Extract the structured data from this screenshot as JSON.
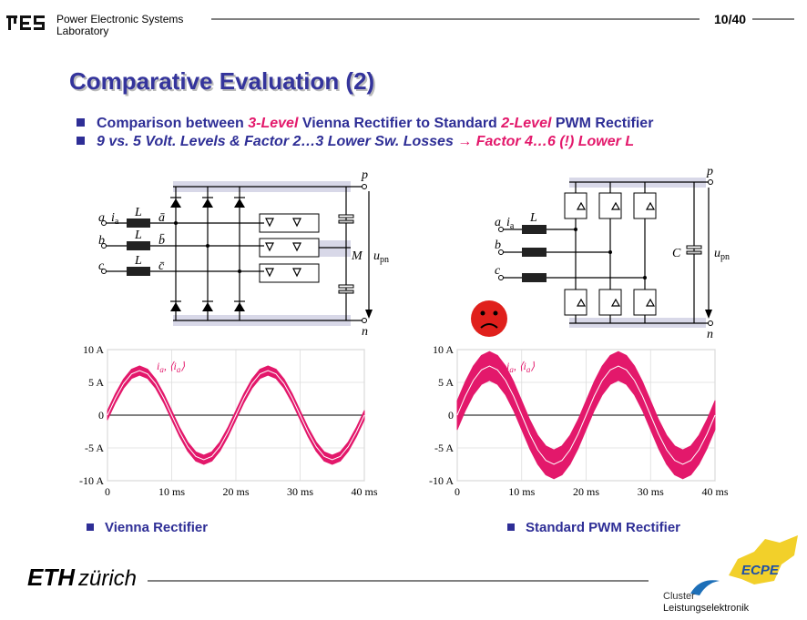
{
  "header": {
    "lab_line1": "Power Electronic Systems",
    "lab_line2": "Laboratory",
    "page": "10/40"
  },
  "title": "Comparative Evaluation (2)",
  "bullets": [
    {
      "a": "Comparison between ",
      "b": "3-Level",
      "c": " Vienna Rectifier to Standard ",
      "d": "2-Level",
      "e": " PWM Rectifier"
    },
    {
      "a": "9 vs. 5 Volt. Levels & Factor 2…3 Lower Sw. Losses ",
      "b": "→",
      "c": " Factor 4…6 (!) Lower L"
    }
  ],
  "diagrams": {
    "vienna": {
      "p": "p",
      "n": "n",
      "M": "M",
      "u": "u",
      "u_sub": "pn",
      "i": "i",
      "i_sub": "a",
      "phases": [
        "a",
        "b",
        "c"
      ],
      "L": [
        "L",
        "L",
        "L"
      ],
      "nodes": [
        "ā",
        "b̄",
        "c̄"
      ]
    },
    "standard": {
      "p": "p",
      "n": "n",
      "C": "C",
      "u": "u",
      "u_sub": "pn",
      "i": "i",
      "i_sub": "a",
      "phases": [
        "a",
        "b",
        "c"
      ],
      "L": "L"
    }
  },
  "chart_data": [
    {
      "type": "band",
      "caption": "Vienna Rectifier",
      "color": "#e3186b",
      "legend": {
        "t1": "i",
        "s1": "a",
        "t2": ", ⟨i",
        "s2": "a",
        "t3": "⟩"
      },
      "x": [
        0,
        1.25,
        2.5,
        3.75,
        5,
        6.25,
        7.5,
        8.75,
        10,
        11.25,
        12.5,
        13.75,
        15,
        16.25,
        17.5,
        18.75,
        20,
        21.25,
        22.5,
        23.75,
        25,
        26.25,
        27.5,
        28.75,
        30,
        31.25,
        32.5,
        33.75,
        35,
        36.25,
        37.5,
        38.75,
        40
      ],
      "values": [
        0,
        2.6,
        4.8,
        6.3,
        6.8,
        6.3,
        4.8,
        2.6,
        0,
        -2.6,
        -4.8,
        -6.3,
        -6.8,
        -6.3,
        -4.8,
        -2.6,
        0,
        2.6,
        4.8,
        6.3,
        6.8,
        6.3,
        4.8,
        2.6,
        0,
        -2.6,
        -4.8,
        -6.3,
        -6.8,
        -6.3,
        -4.8,
        -2.6,
        0
      ],
      "upper": [
        0.7,
        3.3,
        5.5,
        7,
        7.5,
        7,
        5.5,
        3.3,
        0.7,
        -1.9,
        -4.1,
        -5.6,
        -6.1,
        -5.6,
        -4.1,
        -1.9,
        0.7,
        3.3,
        5.5,
        7,
        7.5,
        7,
        5.5,
        3.3,
        0.7,
        -1.9,
        -4.1,
        -5.6,
        -6.1,
        -5.6,
        -4.1,
        -1.9,
        0.7
      ],
      "lower": [
        -0.7,
        1.9,
        4.1,
        5.6,
        6.1,
        5.6,
        4.1,
        1.9,
        -0.7,
        -3.3,
        -5.5,
        -7,
        -7.5,
        -7,
        -5.5,
        -3.3,
        -0.7,
        1.9,
        4.1,
        5.6,
        6.1,
        5.6,
        4.1,
        1.9,
        -0.7,
        -3.3,
        -5.5,
        -7,
        -7.5,
        -7,
        -5.5,
        -3.3,
        -0.7
      ],
      "xlim": [
        0,
        40
      ],
      "ylim": [
        -10,
        10
      ],
      "xticks": [
        0,
        {
          "value": 10,
          "label": "10 ms"
        },
        {
          "value": 20,
          "label": "20 ms"
        },
        {
          "value": 30,
          "label": "30 ms"
        },
        {
          "value": 40,
          "label": "40 ms"
        }
      ],
      "yticks": [
        {
          "value": 10,
          "label": "10 A"
        },
        {
          "value": 5,
          "label": "5 A"
        },
        0,
        {
          "value": -5,
          "label": "-5 A"
        },
        {
          "value": -10,
          "label": "-10 A"
        }
      ],
      "grid": true
    },
    {
      "type": "band",
      "caption": "Standard PWM Rectifier",
      "color": "#e3186b",
      "legend": {
        "t1": "i",
        "s1": "a",
        "t2": ", ⟨i",
        "s2": "a",
        "t3": "⟩"
      },
      "x": [
        0,
        1.25,
        2.5,
        3.75,
        5,
        6.25,
        7.5,
        8.75,
        10,
        11.25,
        12.5,
        13.75,
        15,
        16.25,
        17.5,
        18.75,
        20,
        21.25,
        22.5,
        23.75,
        25,
        26.25,
        27.5,
        28.75,
        30,
        31.25,
        32.5,
        33.75,
        35,
        36.25,
        37.5,
        38.75,
        40
      ],
      "values": [
        0,
        2.9,
        5.3,
        6.9,
        7.5,
        6.9,
        5.3,
        2.9,
        0,
        -2.9,
        -5.3,
        -6.9,
        -7.5,
        -6.9,
        -5.3,
        -2.9,
        0,
        2.9,
        5.3,
        6.9,
        7.5,
        6.9,
        5.3,
        2.9,
        0,
        -2.9,
        -5.3,
        -6.9,
        -7.5,
        -6.9,
        -5.3,
        -2.9,
        0
      ],
      "upper": [
        2.2,
        5.1,
        7.5,
        9.1,
        9.7,
        9.1,
        7.5,
        5.1,
        2.2,
        -0.7,
        -3.1,
        -4.7,
        -5.3,
        -4.7,
        -3.1,
        -0.7,
        2.2,
        5.1,
        7.5,
        9.1,
        9.7,
        9.1,
        7.5,
        5.1,
        2.2,
        -0.7,
        -3.1,
        -4.7,
        -5.3,
        -4.7,
        -3.1,
        -0.7,
        2.2
      ],
      "lower": [
        -2.2,
        0.7,
        3.1,
        4.7,
        5.3,
        4.7,
        3.1,
        0.7,
        -2.2,
        -5.1,
        -7.5,
        -9.1,
        -9.7,
        -9.1,
        -7.5,
        -5.1,
        -2.2,
        0.7,
        3.1,
        4.7,
        5.3,
        4.7,
        3.1,
        0.7,
        -2.2,
        -5.1,
        -7.5,
        -9.1,
        -9.7,
        -9.1,
        -7.5,
        -5.1,
        -2.2
      ],
      "xlim": [
        0,
        40
      ],
      "ylim": [
        -10,
        10
      ],
      "xticks": [
        0,
        {
          "value": 10,
          "label": "10 ms"
        },
        {
          "value": 20,
          "label": "20 ms"
        },
        {
          "value": 30,
          "label": "30 ms"
        },
        {
          "value": 40,
          "label": "40 ms"
        }
      ],
      "yticks": [
        {
          "value": 10,
          "label": "10 A"
        },
        {
          "value": 5,
          "label": "5 A"
        },
        0,
        {
          "value": -5,
          "label": "-5 A"
        },
        {
          "value": -10,
          "label": "-10 A"
        }
      ],
      "grid": true
    }
  ],
  "footer": {
    "eth": "ETH",
    "zurich": "zürich",
    "cluster1": "Cluster",
    "cluster2": "Leistungselektronik",
    "ecpe": "ECPE"
  }
}
